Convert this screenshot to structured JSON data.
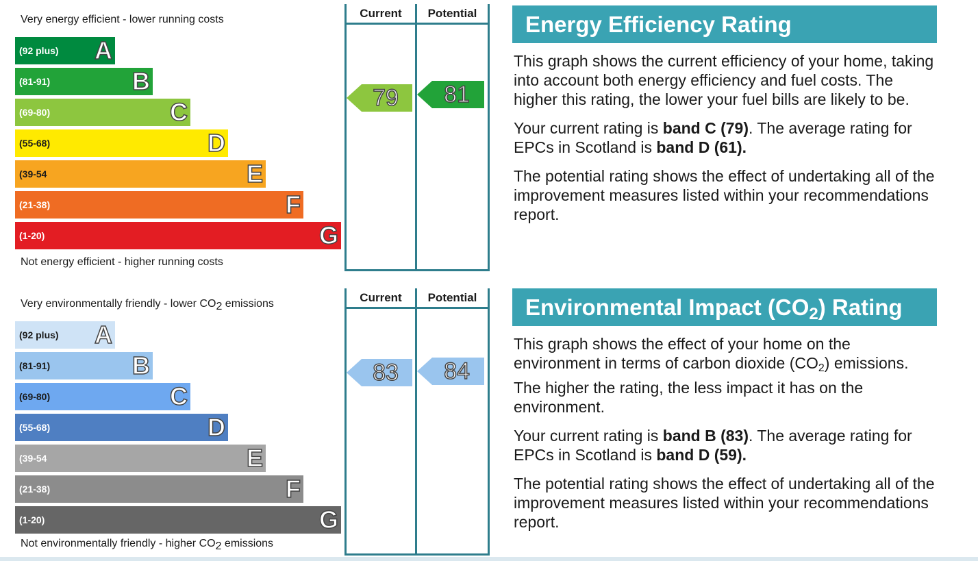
{
  "chart_data": [
    {
      "type": "bar",
      "top_label": "Very energy efficient - lower running costs",
      "bottom_label": "Not energy efficient - higher running costs",
      "columns": [
        "Current",
        "Potential"
      ],
      "bands": [
        {
          "letter": "A",
          "range": "(92 plus)",
          "color": "#008a3f"
        },
        {
          "letter": "B",
          "range": "(81-91)",
          "color": "#22a339"
        },
        {
          "letter": "C",
          "range": "(69-80)",
          "color": "#8dc63f"
        },
        {
          "letter": "D",
          "range": "(55-68)",
          "color": "#ffea00"
        },
        {
          "letter": "E",
          "range": "(39-54",
          "color": "#f7a520"
        },
        {
          "letter": "F",
          "range": "(21-38)",
          "color": "#ef6c23"
        },
        {
          "letter": "G",
          "range": "(1-20)",
          "color": "#e31d23"
        }
      ],
      "current": {
        "value": "79",
        "band": "C",
        "color": "#8dc63f"
      },
      "potential": {
        "value": "81",
        "band": "B",
        "color": "#22a339"
      }
    },
    {
      "type": "bar",
      "top_label": "Very environmentally friendly - lower CO",
      "top_label_sub": "2",
      "top_label_end": " emissions",
      "bottom_label": "Not environmentally friendly - higher CO",
      "bottom_label_sub": "2",
      "bottom_label_end": " emissions",
      "columns": [
        "Current",
        "Potential"
      ],
      "bands": [
        {
          "letter": "A",
          "range": "(92 plus)",
          "color": "#cfe3f6"
        },
        {
          "letter": "B",
          "range": "(81-91)",
          "color": "#9ac5ee"
        },
        {
          "letter": "C",
          "range": "(69-80)",
          "color": "#6ea8f0"
        },
        {
          "letter": "D",
          "range": "(55-68)",
          "color": "#4f7fc2"
        },
        {
          "letter": "E",
          "range": "(39-54",
          "color": "#a6a6a6"
        },
        {
          "letter": "F",
          "range": "(21-38)",
          "color": "#8c8c8c"
        },
        {
          "letter": "G",
          "range": "(1-20)",
          "color": "#666666"
        }
      ],
      "current": {
        "value": "83",
        "band": "B",
        "color": "#9ac5ee"
      },
      "potential": {
        "value": "84",
        "band": "B",
        "color": "#9ac5ee"
      }
    }
  ],
  "energy_panel": {
    "title": "Energy Efficiency Rating",
    "p1": "This graph shows the current efficiency of your home, taking into account both energy efficiency and fuel costs. The higher this rating, the lower your fuel bills are likely to be.",
    "p2_a": "Your current rating is ",
    "p2_b": "band C (79)",
    "p2_c": ". The average rating for EPCs in Scotland is ",
    "p2_d": "band D (61).",
    "p3": "The potential rating shows the effect of undertaking all of the improvement measures listed within your recommendations report."
  },
  "env_panel": {
    "title_a": "Environmental Impact (CO",
    "title_sub": "2",
    "title_b": ") Rating",
    "p1_a": "This graph shows the effect of your home on the environment in terms of carbon dioxide (CO",
    "p1_sub": "2",
    "p1_b": ") emissions. The higher the rating, the less impact it has on the environment.",
    "p2_a": "Your current rating is ",
    "p2_b": "band B (83)",
    "p2_c": ". The average rating for EPCs in Scotland is ",
    "p2_d": "band D (59).",
    "p3": "The potential rating shows the effect of undertaking all of the improvement measures listed within your recommendations report."
  }
}
